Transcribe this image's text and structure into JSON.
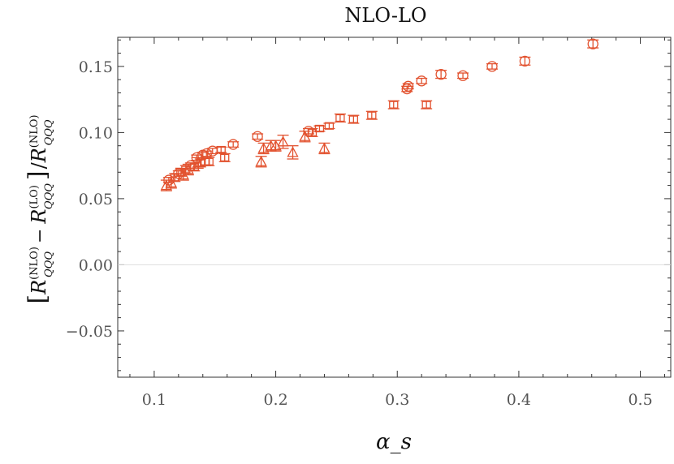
{
  "chart_data": {
    "type": "scatter",
    "title": "NLO-LO",
    "xlabel": "α_s",
    "ylabel_parts": {
      "open": "[",
      "r1": "R",
      "r1_sup": "(NLO)",
      "r1_sub": "QQQ",
      "minus": "−",
      "r2": "R",
      "r2_sup": "(LO)",
      "r2_sub": "QQQ",
      "close": "]",
      "slash": "/",
      "r3": "R",
      "r3_sup": "(NLO)",
      "r3_sub": "QQQ"
    },
    "xlim": [
      0.07,
      0.525
    ],
    "ylim": [
      -0.085,
      0.172
    ],
    "x_ticks": [
      0.1,
      0.2,
      0.3,
      0.4,
      0.5
    ],
    "x_tick_labels": [
      "0.1",
      "0.2",
      "0.3",
      "0.4",
      "0.5"
    ],
    "y_ticks": [
      -0.05,
      0.0,
      0.05,
      0.1,
      0.15
    ],
    "y_tick_labels": [
      "−0.05",
      "0.00",
      "0.05",
      "0.10",
      "0.15"
    ],
    "grid": false,
    "zero_line": true,
    "color": "#e2522f",
    "series": [
      {
        "marker": "circle",
        "points": [
          {
            "x": 0.112,
            "y": 0.064,
            "err": 0.002
          },
          {
            "x": 0.12,
            "y": 0.069,
            "err": 0.002
          },
          {
            "x": 0.13,
            "y": 0.075,
            "err": 0.002
          },
          {
            "x": 0.135,
            "y": 0.081,
            "err": 0.002
          },
          {
            "x": 0.14,
            "y": 0.083,
            "err": 0.002
          },
          {
            "x": 0.143,
            "y": 0.084,
            "err": 0.002
          },
          {
            "x": 0.148,
            "y": 0.086,
            "err": 0.002
          },
          {
            "x": 0.165,
            "y": 0.091,
            "err": 0.002
          },
          {
            "x": 0.185,
            "y": 0.097,
            "err": 0.002
          },
          {
            "x": 0.227,
            "y": 0.101,
            "err": 0.002
          },
          {
            "x": 0.308,
            "y": 0.133,
            "err": 0.002
          },
          {
            "x": 0.309,
            "y": 0.135,
            "err": 0.002
          },
          {
            "x": 0.32,
            "y": 0.139,
            "err": 0.002
          },
          {
            "x": 0.336,
            "y": 0.144,
            "err": 0.003
          },
          {
            "x": 0.354,
            "y": 0.143,
            "err": 0.002
          },
          {
            "x": 0.378,
            "y": 0.15,
            "err": 0.002
          },
          {
            "x": 0.405,
            "y": 0.154,
            "err": 0.003
          },
          {
            "x": 0.461,
            "y": 0.167,
            "err": 0.003
          }
        ]
      },
      {
        "marker": "square",
        "points": [
          {
            "x": 0.117,
            "y": 0.066,
            "err": 0.003
          },
          {
            "x": 0.122,
            "y": 0.07,
            "err": 0.003
          },
          {
            "x": 0.126,
            "y": 0.072,
            "err": 0.003
          },
          {
            "x": 0.133,
            "y": 0.074,
            "err": 0.003
          },
          {
            "x": 0.138,
            "y": 0.077,
            "err": 0.003
          },
          {
            "x": 0.142,
            "y": 0.078,
            "err": 0.003
          },
          {
            "x": 0.145,
            "y": 0.078,
            "err": 0.003
          },
          {
            "x": 0.155,
            "y": 0.087,
            "err": 0.002
          },
          {
            "x": 0.158,
            "y": 0.081,
            "err": 0.003
          },
          {
            "x": 0.23,
            "y": 0.1,
            "err": 0.003
          },
          {
            "x": 0.236,
            "y": 0.103,
            "err": 0.002
          },
          {
            "x": 0.244,
            "y": 0.105,
            "err": 0.002
          },
          {
            "x": 0.253,
            "y": 0.111,
            "err": 0.003
          },
          {
            "x": 0.264,
            "y": 0.11,
            "err": 0.003
          },
          {
            "x": 0.279,
            "y": 0.113,
            "err": 0.003
          },
          {
            "x": 0.297,
            "y": 0.121,
            "err": 0.003
          },
          {
            "x": 0.324,
            "y": 0.121,
            "err": 0.003
          }
        ]
      },
      {
        "marker": "triangle",
        "points": [
          {
            "x": 0.11,
            "y": 0.06,
            "err": 0.004
          },
          {
            "x": 0.114,
            "y": 0.062,
            "err": 0.004
          },
          {
            "x": 0.124,
            "y": 0.068,
            "err": 0.004
          },
          {
            "x": 0.128,
            "y": 0.072,
            "err": 0.004
          },
          {
            "x": 0.136,
            "y": 0.077,
            "err": 0.004
          },
          {
            "x": 0.188,
            "y": 0.078,
            "err": 0.004
          },
          {
            "x": 0.19,
            "y": 0.088,
            "err": 0.004
          },
          {
            "x": 0.196,
            "y": 0.09,
            "err": 0.004
          },
          {
            "x": 0.2,
            "y": 0.09,
            "err": 0.004
          },
          {
            "x": 0.206,
            "y": 0.093,
            "err": 0.005
          },
          {
            "x": 0.214,
            "y": 0.085,
            "err": 0.005
          },
          {
            "x": 0.224,
            "y": 0.097,
            "err": 0.004
          },
          {
            "x": 0.24,
            "y": 0.088,
            "err": 0.004
          }
        ]
      }
    ]
  }
}
